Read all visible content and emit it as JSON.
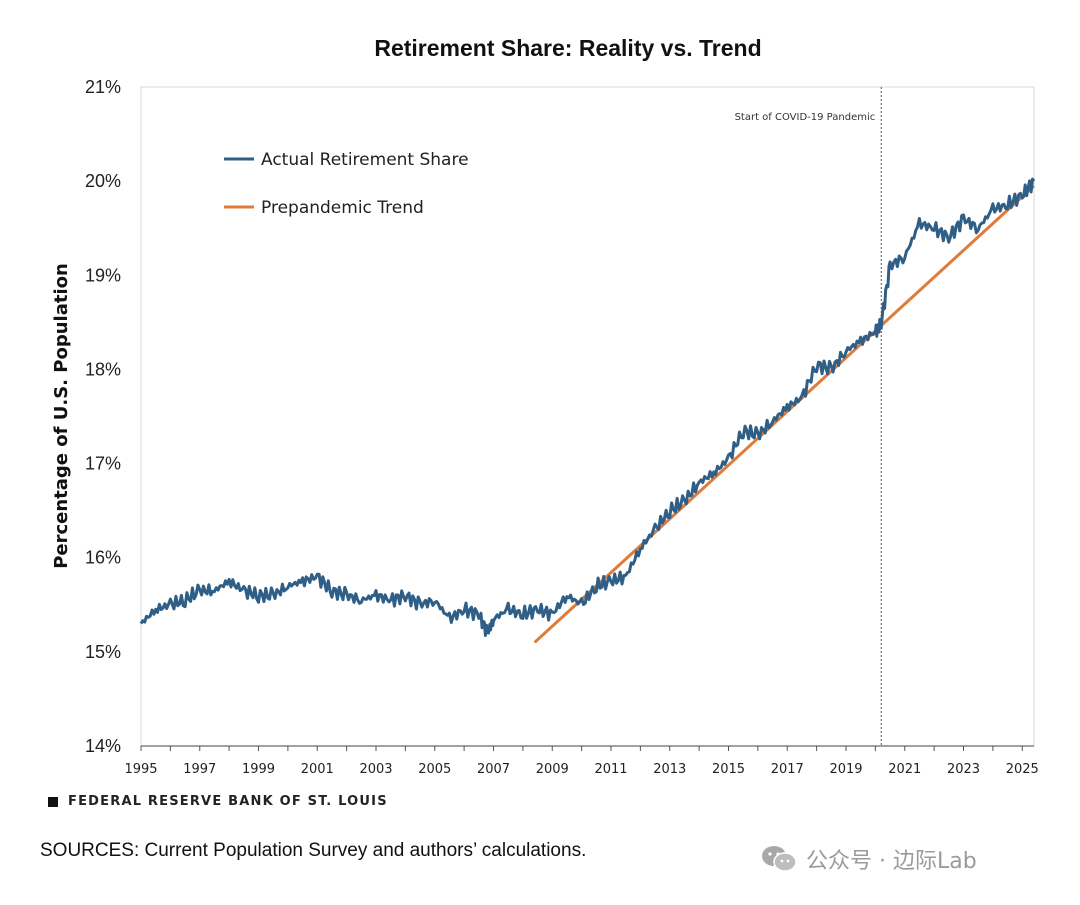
{
  "chart_data": {
    "type": "line",
    "title": "Retirement Share: Reality vs. Trend",
    "ylabel": "Percentage of U.S. Population",
    "xlabel": "",
    "xlim": [
      1995,
      2025.4
    ],
    "ylim": [
      14,
      21
    ],
    "y_ticks": [
      "14%",
      "15%",
      "16%",
      "17%",
      "18%",
      "19%",
      "20%",
      "21%"
    ],
    "x_ticks": [
      "1995",
      "1997",
      "1999",
      "2001",
      "2003",
      "2005",
      "2007",
      "2009",
      "2011",
      "2013",
      "2015",
      "2017",
      "2019",
      "2021",
      "2023",
      "2025"
    ],
    "legend": [
      "Actual Retirement Share",
      "Prepandemic Trend"
    ],
    "annotation": {
      "x": 2020.2,
      "label": "Start of COVID-19 Pandemic"
    },
    "series": [
      {
        "name": "Actual Retirement Share",
        "color": "#2f5f86",
        "x": [
          1995.0,
          1995.5,
          1996.0,
          1996.5,
          1997.0,
          1997.5,
          1998.0,
          1998.5,
          1999.0,
          1999.5,
          2000.0,
          2000.5,
          2001.0,
          2001.5,
          2002.0,
          2002.5,
          2003.0,
          2003.5,
          2004.0,
          2004.5,
          2005.0,
          2005.5,
          2006.0,
          2006.5,
          2006.8,
          2007.0,
          2007.5,
          2008.0,
          2008.5,
          2009.0,
          2009.5,
          2010.0,
          2010.5,
          2011.0,
          2011.5,
          2012.0,
          2012.5,
          2013.0,
          2013.5,
          2014.0,
          2014.5,
          2015.0,
          2015.5,
          2016.0,
          2016.5,
          2017.0,
          2017.5,
          2018.0,
          2018.5,
          2019.0,
          2019.5,
          2020.0,
          2020.2,
          2020.5,
          2021.0,
          2021.5,
          2022.0,
          2022.5,
          2023.0,
          2023.5,
          2024.0,
          2024.5,
          2025.0,
          2025.4
        ],
        "values": [
          15.3,
          15.45,
          15.5,
          15.55,
          15.65,
          15.65,
          15.75,
          15.65,
          15.6,
          15.6,
          15.7,
          15.75,
          15.8,
          15.65,
          15.6,
          15.55,
          15.6,
          15.55,
          15.6,
          15.5,
          15.55,
          15.35,
          15.45,
          15.4,
          15.2,
          15.35,
          15.45,
          15.4,
          15.45,
          15.4,
          15.6,
          15.5,
          15.7,
          15.75,
          15.8,
          16.1,
          16.3,
          16.5,
          16.6,
          16.8,
          16.9,
          17.05,
          17.35,
          17.3,
          17.45,
          17.6,
          17.7,
          18.05,
          18.0,
          18.2,
          18.3,
          18.4,
          18.5,
          19.1,
          19.2,
          19.55,
          19.5,
          19.4,
          19.6,
          19.5,
          19.7,
          19.75,
          19.85,
          20.0
        ]
      },
      {
        "name": "Prepandemic Trend",
        "color": "#e07b3a",
        "x": [
          2008.4,
          2025.4
        ],
        "values": [
          15.1,
          19.95
        ]
      }
    ]
  },
  "footer": {
    "org": "FEDERAL RESERVE BANK OF ST. LOUIS",
    "sources": "SOURCES: Current Population Survey and authors’ calculations.",
    "watermark": "公众号 · 边际Lab"
  }
}
